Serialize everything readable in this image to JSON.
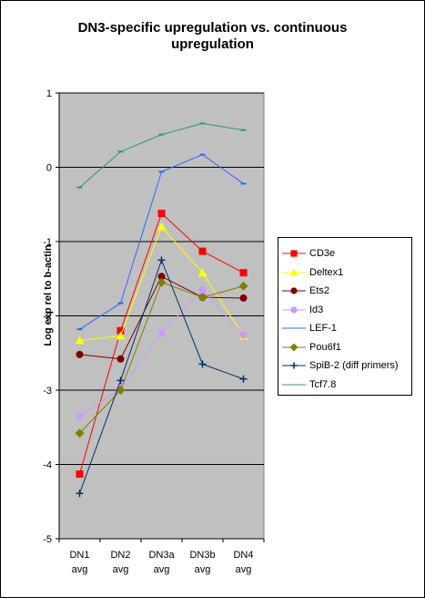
{
  "chart_data": {
    "type": "line",
    "title": "DN3-specific upregulation vs. continuous upregulation",
    "title_lines": [
      "DN3-specific upregulation vs. continuous",
      "upregulation"
    ],
    "ylabel": "Log exp rel to b-actin",
    "xlabel": "",
    "categories": [
      "DN1 avg",
      "DN2 avg",
      "DN3a avg",
      "DN3b avg",
      "DN4 avg"
    ],
    "category_lines": [
      [
        "DN1",
        "avg"
      ],
      [
        "DN2",
        "avg"
      ],
      [
        "DN3a",
        "avg"
      ],
      [
        "DN3b",
        "avg"
      ],
      [
        "DN4",
        "avg"
      ]
    ],
    "ylim": [
      -5,
      1
    ],
    "yticks": [
      1,
      0,
      -1,
      -2,
      -3,
      -4,
      -5
    ],
    "grid": true,
    "legend_position": "right",
    "plot_background": "#c0c0c0",
    "series": [
      {
        "name": "CD3e",
        "color": "#ff0000",
        "marker": "square",
        "values": [
          -4.13,
          -2.2,
          -0.62,
          -1.13,
          -1.42
        ]
      },
      {
        "name": "Deltex1",
        "color": "#ffff00",
        "marker": "triangle",
        "values": [
          -2.33,
          -2.27,
          -0.8,
          -1.42,
          -2.27
        ]
      },
      {
        "name": "Ets2",
        "color": "#800000",
        "marker": "circle",
        "values": [
          -2.52,
          -2.58,
          -1.47,
          -1.75,
          -1.76
        ]
      },
      {
        "name": "Id3",
        "color": "#cc99ff",
        "marker": "circle",
        "values": [
          -3.35,
          -2.98,
          -2.23,
          -1.65,
          -2.26
        ]
      },
      {
        "name": "LEF-1",
        "color": "#3366ff",
        "marker": "dash",
        "values": [
          -2.18,
          -1.83,
          -0.06,
          0.17,
          -0.22
        ]
      },
      {
        "name": "Pou6f1",
        "color": "#808000",
        "marker": "diamond",
        "values": [
          -3.58,
          -3.0,
          -1.55,
          -1.75,
          -1.6
        ]
      },
      {
        "name": "SpiB-2 (diff primers)",
        "color": "#003366",
        "marker": "plus",
        "values": [
          -4.39,
          -2.87,
          -1.25,
          -2.65,
          -2.85
        ]
      },
      {
        "name": "Tcf7.8",
        "color": "#339966",
        "marker": "dash",
        "values": [
          -0.27,
          0.21,
          0.44,
          0.59,
          0.5
        ]
      }
    ]
  }
}
